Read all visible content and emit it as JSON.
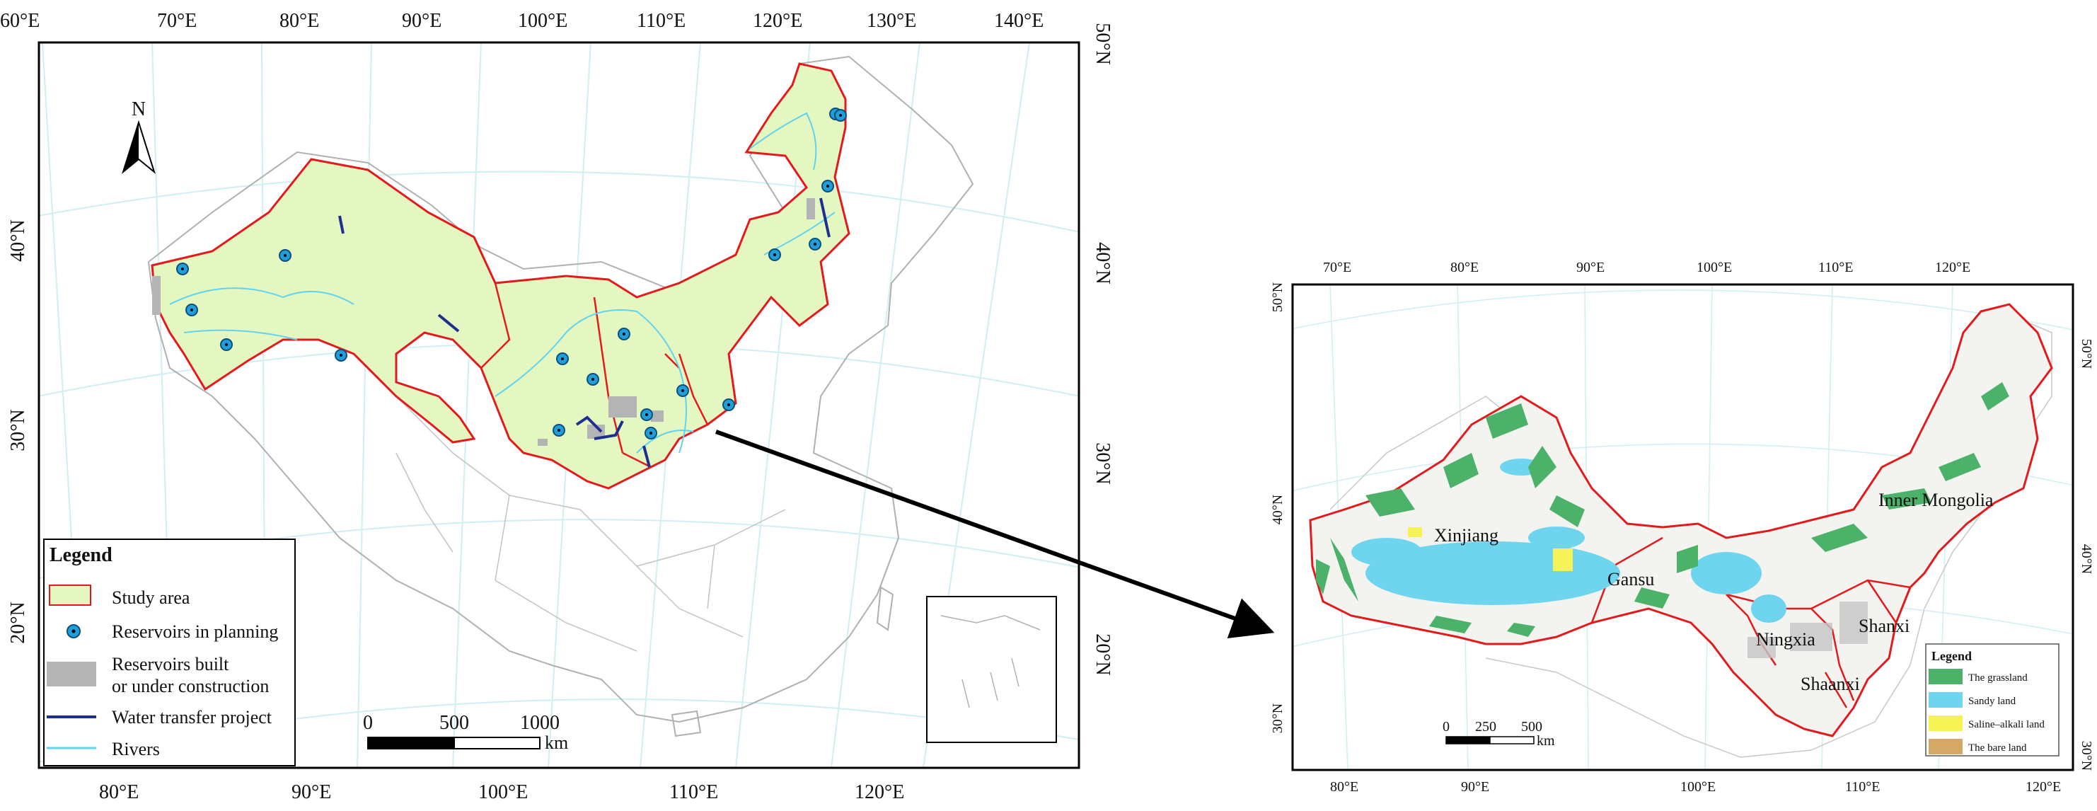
{
  "left_map": {
    "top_lon_labels": [
      "60°E",
      "70°E",
      "80°E",
      "90°E",
      "100°E",
      "110°E",
      "120°E",
      "130°E",
      "140°E"
    ],
    "bottom_lon_labels": [
      "80°E",
      "90°E",
      "100°E",
      "110°E",
      "120°E"
    ],
    "left_lat_labels": [
      "40°N",
      "30°N",
      "20°N"
    ],
    "right_lat_labels_outer": [
      "50°N",
      "40°N",
      "30°N",
      "20°N"
    ],
    "north_label": "N",
    "legend": {
      "title": "Legend",
      "items": [
        {
          "label": "Study area",
          "color": "#e4f7c0",
          "border": "#e31a1c"
        },
        {
          "label": "Reservoirs in planning",
          "color": "#1f9ed9"
        },
        {
          "label": "Reservoirs built",
          "label2": "or under construction",
          "color": "#b4b4b4"
        },
        {
          "label": "Water transfer project",
          "color": "#1f2f8f"
        },
        {
          "label": "Rivers",
          "color": "#5fd3ef"
        }
      ]
    },
    "scale": {
      "ticks": [
        "0",
        "500",
        "1000"
      ],
      "unit": "km"
    }
  },
  "right_map": {
    "top_lon_labels": [
      "70°E",
      "80°E",
      "90°E",
      "100°E",
      "110°E",
      "120°E"
    ],
    "bottom_lon_labels": [
      "80°E",
      "90°E",
      "100°E",
      "110°E",
      "120°E"
    ],
    "left_lat_labels": [
      "50°N",
      "40°N",
      "30°N"
    ],
    "right_lat_labels": [
      "50°N",
      "40°N",
      "30°N"
    ],
    "regions": [
      "Xinjiang",
      "Gansu",
      "Inner Mongolia",
      "Ningxia",
      "Shanxi",
      "Shaanxi"
    ],
    "legend": {
      "title": "Legend",
      "items": [
        {
          "label": "The grassland",
          "color": "#4cb26a"
        },
        {
          "label": "Sandy land",
          "color": "#6fd4ee"
        },
        {
          "label": "Saline–alkali land",
          "color": "#f6f357"
        },
        {
          "label": "The bare land",
          "color": "#d4a866"
        }
      ]
    },
    "scale": {
      "ticks": [
        "0",
        "250",
        "500"
      ],
      "unit": "km"
    }
  },
  "colors": {
    "study_area": "#e4f7c0",
    "boundary": "#e31a1c",
    "china_border": "#b0b0b0",
    "graticule": "#cfeff4",
    "river": "#5fd3ef",
    "transfer": "#1f2f8f",
    "reservoir_plan": "#1f9ed9"
  }
}
